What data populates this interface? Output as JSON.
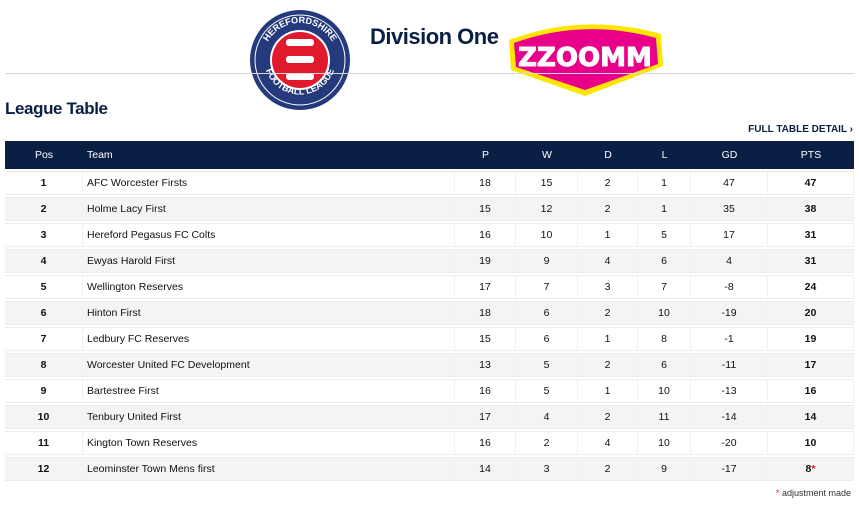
{
  "header": {
    "title": "Division One",
    "league_logo_text": "HEREFORDSHIRE FOOTBALL LEAGUE",
    "sponsor_logo_text": "ZZOOMM"
  },
  "section": {
    "title": "League Table",
    "full_table_link": "FULL TABLE DETAIL"
  },
  "table": {
    "columns": [
      "Pos",
      "Team",
      "P",
      "W",
      "D",
      "L",
      "GD",
      "PTS"
    ],
    "rows": [
      {
        "pos": "1",
        "team": "AFC Worcester Firsts",
        "p": "18",
        "w": "15",
        "d": "2",
        "l": "1",
        "gd": "47",
        "pts": "47"
      },
      {
        "pos": "2",
        "team": "Holme Lacy First",
        "p": "15",
        "w": "12",
        "d": "2",
        "l": "1",
        "gd": "35",
        "pts": "38"
      },
      {
        "pos": "3",
        "team": "Hereford Pegasus FC Colts",
        "p": "16",
        "w": "10",
        "d": "1",
        "l": "5",
        "gd": "17",
        "pts": "31"
      },
      {
        "pos": "4",
        "team": "Ewyas Harold First",
        "p": "19",
        "w": "9",
        "d": "4",
        "l": "6",
        "gd": "4",
        "pts": "31"
      },
      {
        "pos": "5",
        "team": "Wellington Reserves",
        "p": "17",
        "w": "7",
        "d": "3",
        "l": "7",
        "gd": "-8",
        "pts": "24"
      },
      {
        "pos": "6",
        "team": "Hinton First",
        "p": "18",
        "w": "6",
        "d": "2",
        "l": "10",
        "gd": "-19",
        "pts": "20"
      },
      {
        "pos": "7",
        "team": "Ledbury FC Reserves",
        "p": "15",
        "w": "6",
        "d": "1",
        "l": "8",
        "gd": "-1",
        "pts": "19"
      },
      {
        "pos": "8",
        "team": "Worcester United FC Development",
        "p": "13",
        "w": "5",
        "d": "2",
        "l": "6",
        "gd": "-11",
        "pts": "17"
      },
      {
        "pos": "9",
        "team": "Bartestree First",
        "p": "16",
        "w": "5",
        "d": "1",
        "l": "10",
        "gd": "-13",
        "pts": "16"
      },
      {
        "pos": "10",
        "team": "Tenbury United First",
        "p": "17",
        "w": "4",
        "d": "2",
        "l": "11",
        "gd": "-14",
        "pts": "14"
      },
      {
        "pos": "11",
        "team": "Kington Town Reserves",
        "p": "16",
        "w": "2",
        "d": "4",
        "l": "10",
        "gd": "-20",
        "pts": "10"
      },
      {
        "pos": "12",
        "team": "Leominster Town Mens first",
        "p": "14",
        "w": "3",
        "d": "2",
        "l": "9",
        "gd": "-17",
        "pts": "8",
        "adjusted": true
      }
    ]
  },
  "footnote": {
    "star": "*",
    "text": "adjustment made"
  },
  "colors": {
    "navy": "#0a1f44",
    "red": "#e0192c",
    "pink": "#e8008a",
    "yellow": "#ffe600"
  }
}
